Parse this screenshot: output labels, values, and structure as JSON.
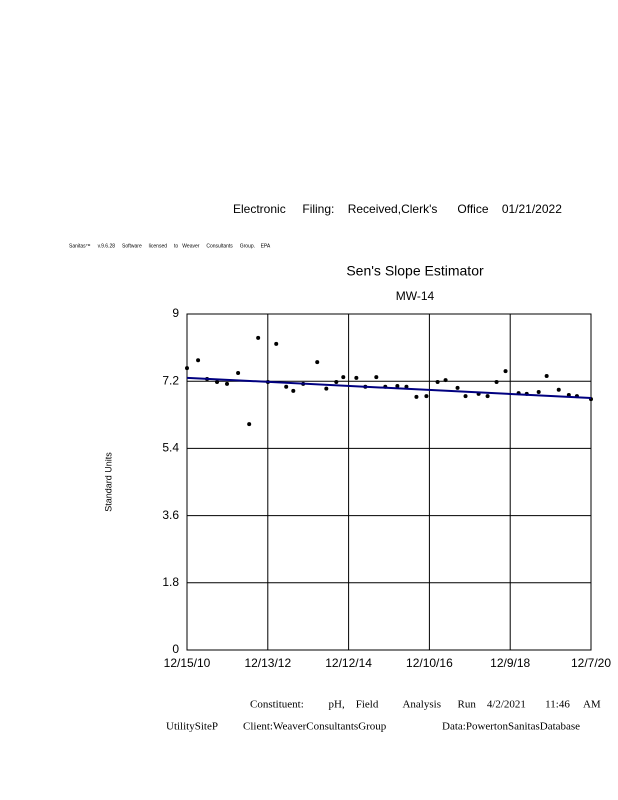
{
  "header": {
    "filing": "Electronic     Filing:    Received,Clerk's      Office    01/21/2022",
    "notice": "Sanitas™     v.9.6.28     Software     licensed     to   Weaver     Consultants     Group.    EPA"
  },
  "chart_data": {
    "type": "scatter",
    "title": "Sen's Slope Estimator",
    "subtitle": "MW-14",
    "y_label": "Standard Units",
    "xlim": [
      "12/15/10",
      "12/7/20"
    ],
    "xticks": [
      "12/15/10",
      "12/13/12",
      "12/12/14",
      "12/10/16",
      "12/9/18",
      "12/7/20"
    ],
    "ylim": [
      0,
      9
    ],
    "yticks": [
      0,
      1.8,
      3.6,
      5.4,
      7.2,
      9
    ],
    "grid": true,
    "series": [
      {
        "color": "#000000",
        "x": [
          "12/15/10",
          "3/25/11",
          "6/14/11",
          "9/12/11",
          "12/11/11",
          "3/20/12",
          "6/28/12",
          "9/17/12",
          "12/14/12",
          "2/27/13",
          "5/28/13",
          "7/31/13",
          "10/28/13",
          "3/4/14",
          "5/25/14",
          "8/23/14",
          "10/25/14",
          "2/20/15",
          "5/12/15",
          "8/19/15",
          "11/8/15",
          "2/25/16",
          "5/17/16",
          "8/15/16",
          "11/13/16",
          "2/22/17",
          "5/5/17",
          "8/21/17",
          "11/1/17",
          "2/27/18",
          "5/19/18",
          "8/8/18",
          "10/28/18",
          "2/23/19",
          "5/7/19",
          "8/23/19",
          "11/3/19",
          "2/20/20",
          "5/21/20",
          "8/2/20",
          "12/7/20"
        ],
        "values": [
          7.55,
          7.76,
          7.26,
          7.18,
          7.13,
          7.42,
          6.05,
          8.36,
          7.18,
          8.2,
          7.05,
          6.94,
          7.13,
          7.71,
          7.0,
          7.18,
          7.31,
          7.29,
          7.05,
          7.31,
          7.05,
          7.07,
          7.05,
          6.78,
          6.8,
          7.18,
          7.23,
          7.02,
          6.8,
          6.86,
          6.8,
          7.18,
          7.47,
          6.88,
          6.86,
          6.91,
          7.34,
          6.97,
          6.83,
          6.8,
          6.72
        ]
      },
      {
        "color": "#000080",
        "line": true,
        "x": [
          "12/15/10",
          "12/7/20"
        ],
        "values": [
          7.29,
          6.75
        ]
      }
    ]
  },
  "footer": {
    "run": "Constituent:         pH,    Field         Analysis      Run    4/2/2021       11:46     AM",
    "site": "UtilitySiteP",
    "client": "Client:WeaverConsultantsGroup",
    "data": "Data:PowertonSanitasDatabase"
  }
}
